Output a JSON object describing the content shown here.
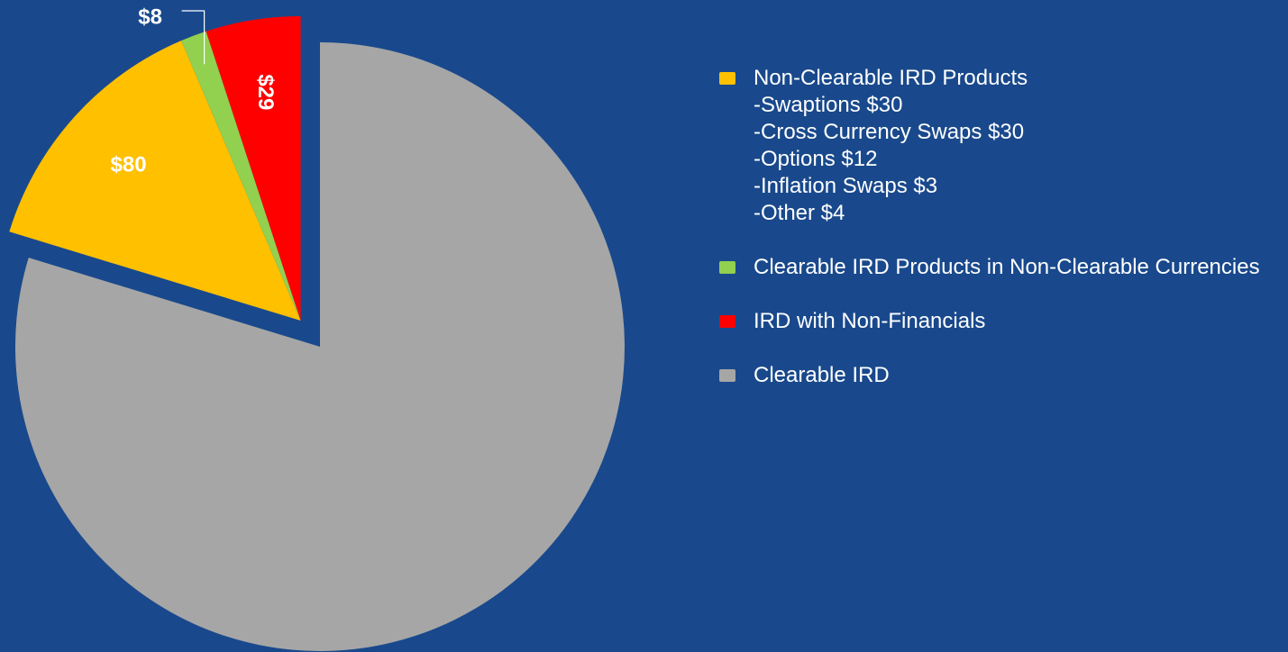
{
  "chart_data": {
    "type": "pie",
    "categories": [
      "Non-Clearable IRD Products",
      "Clearable IRD Products in Non-Clearable Currencies",
      "IRD with Non-Financials",
      "Clearable IRD"
    ],
    "values": [
      80,
      8,
      29,
      460
    ],
    "value_labels": [
      "$80",
      "$8",
      "$29",
      null
    ],
    "colors": [
      "#ffc000",
      "#92d050",
      "#ff0000",
      "#a6a6a6"
    ],
    "exploded": [
      true,
      true,
      true,
      false
    ],
    "legend_subitems": [
      "-Swaptions $30",
      "-Cross Currency Swaps $30",
      "-Options $12",
      "-Inflation Swaps $3",
      "-Other $4"
    ],
    "legend": "right"
  }
}
